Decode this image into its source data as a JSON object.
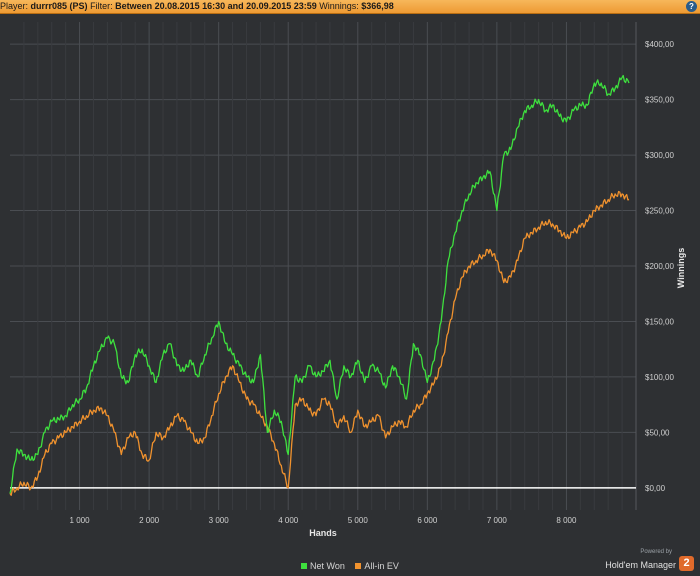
{
  "header": {
    "player_label": "Player:",
    "player_value": "durrr085 (PS)",
    "filter_label": "Filter:",
    "filter_value": "Between 20.08.2015 16:30 and 20.09.2015 23:59",
    "winnings_label": "Winnings:",
    "winnings_value": "$366,98",
    "help_glyph": "?"
  },
  "footer": {
    "powered_by": "Powered by",
    "brand": "Hold'em Manager",
    "brand_mark": "2"
  },
  "colors": {
    "net_won": "#3ee03e",
    "allin_ev": "#f0922e",
    "zero_line": "#ffffff",
    "grid": "#4a4d52",
    "plot_bg": "#2e3033"
  },
  "chart_data": {
    "type": "line",
    "title": "",
    "xlabel": "Hands",
    "ylabel": "Winnings",
    "xlim": [
      0,
      9000
    ],
    "ylim": [
      -20,
      420
    ],
    "x_ticks": [
      1000,
      2000,
      3000,
      4000,
      5000,
      6000,
      7000,
      8000
    ],
    "x_tick_labels": [
      "1 000",
      "2 000",
      "3 000",
      "4 000",
      "5 000",
      "6 000",
      "7 000",
      "8 000"
    ],
    "y_ticks": [
      0,
      50,
      100,
      150,
      200,
      250,
      300,
      350,
      400
    ],
    "y_tick_labels": [
      "$0,00",
      "$50,00",
      "$100,00",
      "$150,00",
      "$200,00",
      "$250,00",
      "$300,00",
      "$350,00",
      "$400,00"
    ],
    "grid": true,
    "legend_position": "bottom",
    "series": [
      {
        "name": "Net Won",
        "x": [
          0,
          100,
          200,
          300,
          400,
          500,
          600,
          700,
          800,
          900,
          1000,
          1100,
          1200,
          1300,
          1400,
          1500,
          1600,
          1700,
          1800,
          1900,
          2000,
          2100,
          2200,
          2300,
          2400,
          2500,
          2600,
          2700,
          2800,
          2900,
          3000,
          3100,
          3200,
          3300,
          3400,
          3500,
          3600,
          3700,
          3800,
          3900,
          4000,
          4100,
          4200,
          4300,
          4400,
          4500,
          4600,
          4700,
          4800,
          4900,
          5000,
          5100,
          5200,
          5300,
          5400,
          5500,
          5600,
          5700,
          5800,
          5900,
          6000,
          6100,
          6200,
          6300,
          6400,
          6500,
          6600,
          6700,
          6800,
          6900,
          7000,
          7100,
          7200,
          7300,
          7400,
          7500,
          7600,
          7700,
          7800,
          7900,
          8000,
          8100,
          8200,
          8300,
          8400,
          8500,
          8600,
          8700,
          8800,
          8900
        ],
        "y": [
          -5,
          35,
          30,
          25,
          30,
          50,
          60,
          62,
          65,
          75,
          80,
          90,
          110,
          125,
          135,
          130,
          100,
          95,
          120,
          125,
          110,
          95,
          120,
          130,
          110,
          105,
          115,
          100,
          120,
          135,
          150,
          130,
          120,
          110,
          100,
          95,
          120,
          50,
          70,
          60,
          30,
          100,
          95,
          110,
          100,
          105,
          115,
          80,
          110,
          100,
          115,
          95,
          110,
          105,
          90,
          110,
          100,
          80,
          130,
          120,
          95,
          115,
          150,
          205,
          230,
          250,
          265,
          275,
          280,
          285,
          250,
          300,
          305,
          325,
          340,
          345,
          350,
          340,
          345,
          335,
          330,
          340,
          345,
          345,
          365,
          365,
          355,
          360,
          370,
          365
        ]
      },
      {
        "name": "All-in EV",
        "x": [
          0,
          100,
          200,
          300,
          400,
          500,
          600,
          700,
          800,
          900,
          1000,
          1100,
          1200,
          1300,
          1400,
          1500,
          1600,
          1700,
          1800,
          1900,
          2000,
          2100,
          2200,
          2300,
          2400,
          2500,
          2600,
          2700,
          2800,
          2900,
          3000,
          3100,
          3200,
          3300,
          3400,
          3500,
          3600,
          3700,
          3800,
          3900,
          4000,
          4100,
          4200,
          4300,
          4400,
          4500,
          4600,
          4700,
          4800,
          4900,
          5000,
          5100,
          5200,
          5300,
          5400,
          5500,
          5600,
          5700,
          5800,
          5900,
          6000,
          6100,
          6200,
          6300,
          6400,
          6500,
          6600,
          6700,
          6800,
          6900,
          7000,
          7100,
          7200,
          7300,
          7400,
          7500,
          7600,
          7700,
          7800,
          7900,
          8000,
          8100,
          8200,
          8300,
          8400,
          8500,
          8600,
          8700,
          8800,
          8900
        ],
        "y": [
          -5,
          0,
          5,
          0,
          10,
          30,
          40,
          45,
          50,
          55,
          60,
          65,
          70,
          72,
          65,
          50,
          30,
          45,
          50,
          30,
          25,
          50,
          45,
          55,
          65,
          60,
          50,
          40,
          45,
          65,
          85,
          100,
          110,
          95,
          80,
          75,
          65,
          55,
          40,
          20,
          0,
          75,
          80,
          70,
          65,
          80,
          75,
          55,
          65,
          50,
          70,
          55,
          60,
          65,
          45,
          55,
          60,
          55,
          70,
          75,
          85,
          95,
          110,
          140,
          170,
          190,
          200,
          205,
          210,
          215,
          205,
          185,
          190,
          205,
          225,
          230,
          235,
          240,
          238,
          232,
          225,
          230,
          235,
          240,
          250,
          255,
          260,
          265,
          265,
          260
        ]
      }
    ]
  }
}
